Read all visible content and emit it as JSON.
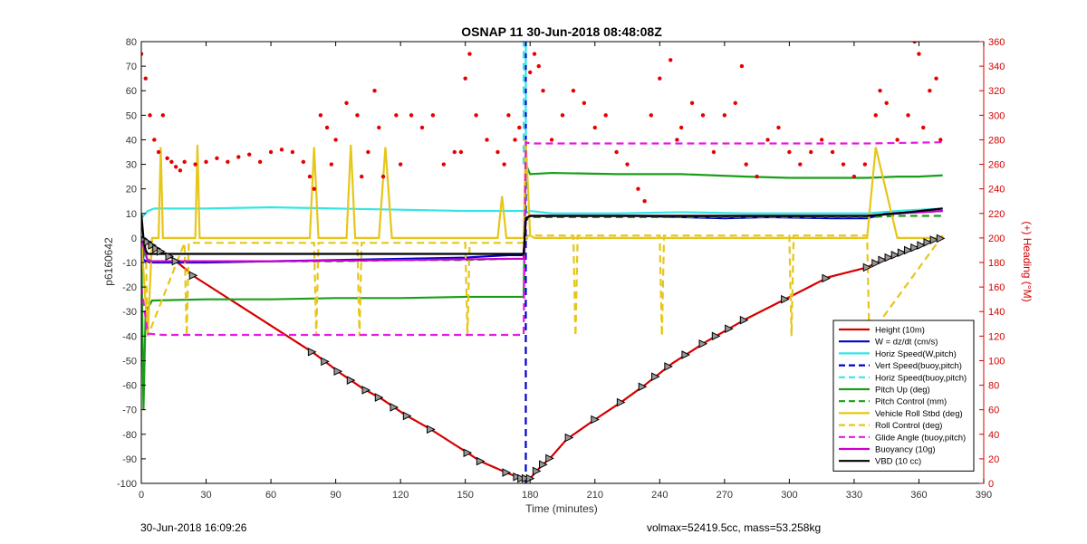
{
  "chart_data": {
    "type": "line",
    "title": "OSNAP 11 30-Jun-2018 08:48:08Z",
    "xlabel": "Time (minutes)",
    "ylabel": "p6160642",
    "y2label": "(+) Heading (°M)",
    "xlim": [
      0,
      390
    ],
    "ylim": [
      -100,
      80
    ],
    "y2lim": [
      0,
      360
    ],
    "xticks": [
      0,
      30,
      60,
      90,
      120,
      150,
      180,
      210,
      240,
      270,
      300,
      330,
      360,
      390
    ],
    "yticks": [
      -100,
      -90,
      -80,
      -70,
      -60,
      -50,
      -40,
      -30,
      -20,
      -10,
      0,
      10,
      20,
      30,
      40,
      50,
      60,
      70,
      80
    ],
    "y2ticks": [
      0,
      20,
      40,
      60,
      80,
      100,
      120,
      140,
      160,
      180,
      200,
      220,
      240,
      260,
      280,
      300,
      320,
      340,
      360
    ],
    "legend_position": "lower-right",
    "grid": false,
    "series": [
      {
        "name": "Height (10m)",
        "color": "#d40000",
        "style": "solid",
        "x": [
          0,
          2,
          5,
          8,
          14,
          25,
          80,
          86,
          92,
          102,
          112,
          122,
          134,
          150,
          157,
          170,
          176,
          178,
          180,
          184,
          190,
          197,
          210,
          222,
          233,
          246,
          262,
          280,
          298,
          318,
          336,
          343,
          349,
          355,
          361,
          366,
          371
        ],
        "y": [
          0,
          -1,
          -3,
          -5,
          -8,
          -16,
          -47,
          -51,
          -55,
          -61,
          -66,
          -72,
          -78,
          -87,
          -91,
          -96,
          -98,
          -98,
          -98,
          -94,
          -89,
          -82,
          -74,
          -67,
          -60,
          -51,
          -42,
          -33,
          -25,
          -16,
          -12,
          -9,
          -7,
          -5,
          -3,
          -1,
          0
        ]
      },
      {
        "name": "W = dz/dt (cm/s)",
        "color": "#0000cc",
        "style": "solid",
        "x": [
          0,
          1,
          4,
          30,
          60,
          90,
          120,
          150,
          170,
          177,
          178,
          180,
          183,
          200,
          230,
          250,
          270,
          290,
          320,
          336,
          345,
          360,
          371
        ],
        "y": [
          0,
          -9,
          -10,
          -10,
          -9.5,
          -9,
          -8.5,
          -8,
          -7,
          -7,
          7,
          9,
          9,
          9,
          9,
          8.5,
          8,
          8.5,
          8,
          8,
          10,
          10.5,
          11
        ]
      },
      {
        "name": "Horiz Speed(W,pitch)",
        "color": "#33e6e6",
        "style": "solid",
        "x": [
          0,
          3,
          6,
          30,
          60,
          90,
          120,
          150,
          170,
          177,
          178,
          180,
          190,
          220,
          250,
          280,
          310,
          336,
          350,
          371
        ],
        "y": [
          8,
          11,
          12,
          12,
          12.5,
          12,
          11.5,
          11,
          11,
          11,
          10,
          11,
          10,
          10,
          10.5,
          10,
          10,
          10,
          11,
          12
        ]
      },
      {
        "name": "Vert Speed(buoy,pitch)",
        "color": "#0000cc",
        "style": "dashed",
        "x": [
          178,
          178,
          178,
          178
        ],
        "y": [
          -100,
          -30,
          40,
          80
        ]
      },
      {
        "name": "Horiz Speed(buoy,pitch)",
        "color": "#33e6e6",
        "style": "dashed",
        "x": [
          177,
          177,
          178,
          178
        ],
        "y": [
          30,
          80,
          80,
          30
        ]
      },
      {
        "name": "Pitch Up (deg)",
        "color": "#1a9e1a",
        "style": "solid",
        "x": [
          0,
          1,
          2,
          5,
          30,
          60,
          90,
          120,
          150,
          170,
          177,
          178,
          180,
          190,
          220,
          250,
          280,
          300,
          336,
          350,
          360,
          371
        ],
        "y": [
          0,
          -70,
          -30,
          -25.5,
          -25,
          -25,
          -24.5,
          -24.5,
          -24,
          -24,
          -24,
          30,
          26,
          26.5,
          26,
          26,
          25,
          24.5,
          24.5,
          25,
          25,
          25.5
        ]
      },
      {
        "name": "Pitch Control (mm)",
        "color": "#1a9e1a",
        "style": "dashed",
        "x": [
          0,
          2,
          5,
          30,
          60,
          90,
          120,
          150,
          170,
          177,
          178,
          180,
          200,
          240,
          280,
          320,
          336,
          350,
          371
        ],
        "y": [
          0,
          -8,
          -9.5,
          -9.5,
          -9.5,
          -9.5,
          -9,
          -9,
          -8.5,
          -8.5,
          8,
          8.5,
          8.5,
          8.5,
          8.5,
          8.5,
          8.5,
          9,
          9
        ]
      },
      {
        "name": "Vehicle Roll Stbd (deg)",
        "color": "#e6c619",
        "style": "solid",
        "x": [
          0,
          3,
          5,
          8,
          9,
          10,
          25,
          26,
          27,
          78,
          80,
          82,
          95,
          97,
          99,
          110,
          113,
          116,
          150,
          165,
          167,
          169,
          177,
          178,
          180,
          182,
          200,
          240,
          280,
          336,
          340,
          350,
          371
        ],
        "y": [
          0,
          -40,
          0,
          0,
          37,
          0,
          0,
          38,
          0,
          0,
          37,
          0,
          0,
          38,
          0,
          0,
          37,
          0,
          0,
          0,
          17,
          0,
          0,
          40,
          1,
          0,
          0,
          0,
          0,
          0,
          37,
          0,
          0
        ]
      },
      {
        "name": "Roll Control (deg)",
        "color": "#e6c619",
        "style": "dashed",
        "x": [
          0,
          2,
          3,
          20,
          21,
          22,
          80,
          81,
          82,
          100,
          101,
          102,
          150,
          151,
          152,
          178,
          179,
          200,
          201,
          202,
          240,
          241,
          242,
          300,
          301,
          302,
          336,
          337,
          371
        ],
        "y": [
          -2,
          -2,
          -40,
          -2,
          -40,
          -2,
          -2,
          -40,
          -2,
          -2,
          -40,
          -2,
          -2,
          -40,
          -2,
          -2,
          1,
          1,
          -40,
          1,
          1,
          -40,
          1,
          1,
          -40,
          1,
          1,
          -40,
          1
        ]
      },
      {
        "name": "Glide Angle (buoy,pitch)",
        "color": "#e619e6",
        "style": "dashed",
        "x": [
          0,
          3,
          10,
          60,
          120,
          170,
          177,
          178,
          180,
          240,
          300,
          336,
          371
        ],
        "y": [
          -20,
          -39,
          -39.5,
          -39.5,
          -39.5,
          -39.5,
          -39.5,
          39,
          38.5,
          38.5,
          38.5,
          38.5,
          39
        ]
      },
      {
        "name": "Buoyancy (10g)",
        "color": "#cc00cc",
        "style": "solid",
        "x": [
          0,
          3,
          10,
          60,
          120,
          170,
          177,
          178,
          180,
          240,
          300,
          336,
          350,
          371
        ],
        "y": [
          0,
          -9.5,
          -9.5,
          -9.5,
          -9,
          -8.5,
          -8.5,
          8,
          9,
          9,
          9,
          9,
          10,
          11
        ]
      },
      {
        "name": "VBD (10 cc)",
        "color": "#000000",
        "style": "solid",
        "x": [
          0,
          1,
          2,
          3,
          10,
          60,
          120,
          170,
          177,
          178,
          180,
          240,
          280,
          336,
          350,
          371
        ],
        "y": [
          10,
          0,
          -5,
          -6.5,
          -6.5,
          -6.5,
          -6.5,
          -6.5,
          -6.5,
          8,
          9,
          9,
          9,
          9,
          10,
          12
        ]
      }
    ],
    "heading_points": {
      "color": "#e60000",
      "axis": "right",
      "x": [
        0,
        2,
        4,
        6,
        8,
        10,
        12,
        14,
        16,
        18,
        20,
        25,
        30,
        35,
        40,
        45,
        50,
        55,
        60,
        65,
        70,
        75,
        78,
        80,
        83,
        86,
        88,
        90,
        95,
        100,
        102,
        105,
        108,
        110,
        112,
        118,
        120,
        125,
        130,
        135,
        140,
        145,
        148,
        150,
        152,
        155,
        160,
        165,
        168,
        170,
        173,
        175,
        180,
        182,
        184,
        186,
        190,
        195,
        200,
        205,
        210,
        215,
        220,
        225,
        230,
        233,
        236,
        240,
        245,
        248,
        250,
        255,
        260,
        265,
        270,
        275,
        278,
        280,
        285,
        290,
        295,
        300,
        305,
        310,
        315,
        320,
        325,
        330,
        335,
        340,
        342,
        345,
        350,
        355,
        358,
        360,
        362,
        365,
        368,
        370
      ],
      "y": [
        350,
        330,
        300,
        280,
        270,
        300,
        265,
        262,
        258,
        255,
        262,
        260,
        262,
        265,
        262,
        266,
        268,
        262,
        270,
        272,
        270,
        262,
        250,
        240,
        300,
        290,
        260,
        280,
        310,
        300,
        250,
        270,
        320,
        290,
        250,
        300,
        260,
        300,
        290,
        300,
        260,
        270,
        270,
        330,
        350,
        300,
        280,
        270,
        260,
        300,
        280,
        290,
        335,
        350,
        340,
        320,
        280,
        300,
        320,
        310,
        290,
        300,
        270,
        260,
        240,
        230,
        300,
        330,
        345,
        280,
        290,
        310,
        300,
        270,
        300,
        310,
        340,
        260,
        250,
        280,
        290,
        270,
        260,
        270,
        280,
        270,
        260,
        250,
        260,
        300,
        320,
        310,
        280,
        300,
        360,
        350,
        290,
        320,
        330,
        280
      ]
    },
    "vbd_markers": {
      "x": [
        1,
        3,
        5,
        7,
        9,
        13,
        16,
        24,
        79,
        85,
        91,
        97,
        104,
        110,
        117,
        123,
        134,
        151,
        157,
        169,
        174,
        176,
        178,
        180,
        183,
        186,
        189,
        198,
        210,
        222,
        232,
        238,
        244,
        252,
        260,
        266,
        272,
        279,
        298,
        317,
        336,
        340,
        343,
        346,
        349,
        352,
        355,
        358,
        361,
        364,
        367,
        370
      ]
    }
  },
  "footer": {
    "timestamp": "30-Jun-2018 16:09:26",
    "stats": "volmax=52419.5cc, mass=53.258kg"
  }
}
